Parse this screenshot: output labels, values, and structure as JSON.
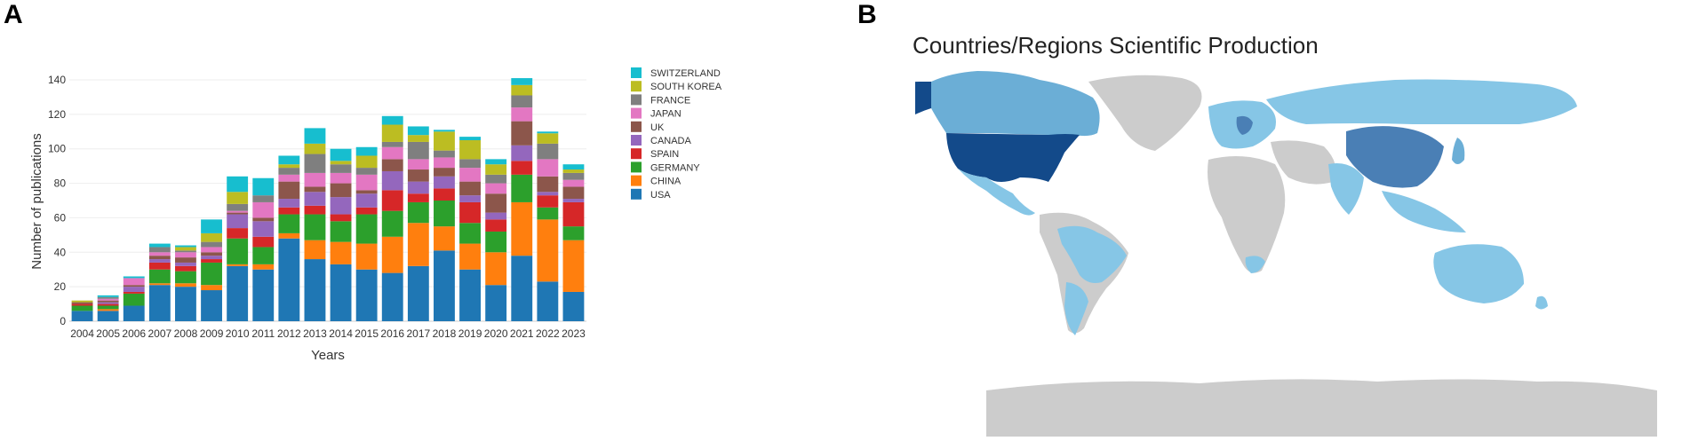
{
  "panel_a": {
    "letter": "A"
  },
  "panel_b": {
    "letter": "B",
    "title": "Countries/Regions Scientific Production"
  },
  "colors": {
    "USA": "#1f77b4",
    "CHINA": "#ff7f0e",
    "GERMANY": "#2ca02c",
    "SPAIN": "#d62728",
    "CANADA": "#9467bd",
    "UK": "#8c564b",
    "JAPAN": "#e377c2",
    "FRANCE": "#7f7f7f",
    "SOUTH KOREA": "#bcbd22",
    "SWITZERLAND": "#17becf",
    "map_none": "#cccccc",
    "map_low": "#86c6e6",
    "map_mid": "#6baed6",
    "map_high": "#4a7fb5",
    "map_top": "#134a8a"
  },
  "chart_data": {
    "type": "bar",
    "stacked": true,
    "title": "",
    "xlabel": "Years",
    "ylabel": "Number of publications",
    "ylim": [
      0,
      140
    ],
    "yticks": [
      0,
      20,
      40,
      60,
      80,
      100,
      120,
      140
    ],
    "legend_position": "right",
    "categories": [
      "2004",
      "2005",
      "2006",
      "2007",
      "2008",
      "2009",
      "2010",
      "2011",
      "2012",
      "2013",
      "2014",
      "2015",
      "2016",
      "2017",
      "2018",
      "2019",
      "2020",
      "2021",
      "2022",
      "2023"
    ],
    "series": [
      {
        "name": "USA",
        "values": [
          6,
          6,
          9,
          21,
          20,
          18,
          32,
          30,
          48,
          36,
          33,
          30,
          28,
          32,
          41,
          30,
          21,
          38,
          23,
          17
        ]
      },
      {
        "name": "CHINA",
        "values": [
          0,
          1,
          0,
          1,
          2,
          3,
          1,
          3,
          3,
          11,
          13,
          15,
          21,
          25,
          14,
          15,
          19,
          31,
          36,
          30
        ]
      },
      {
        "name": "GERMANY",
        "values": [
          3,
          2,
          7,
          8,
          7,
          13,
          15,
          10,
          11,
          15,
          12,
          17,
          15,
          12,
          15,
          12,
          12,
          16,
          7,
          8
        ]
      },
      {
        "name": "SPAIN",
        "values": [
          1,
          1,
          1,
          4,
          3,
          2,
          6,
          6,
          4,
          5,
          4,
          4,
          12,
          5,
          7,
          12,
          7,
          8,
          7,
          14
        ]
      },
      {
        "name": "CANADA",
        "values": [
          0,
          1,
          3,
          2,
          2,
          2,
          8,
          9,
          5,
          8,
          10,
          8,
          11,
          7,
          7,
          4,
          4,
          9,
          2,
          2
        ]
      },
      {
        "name": "UK",
        "values": [
          1,
          1,
          1,
          2,
          3,
          2,
          1,
          2,
          10,
          3,
          8,
          2,
          7,
          7,
          5,
          8,
          11,
          14,
          9,
          7
        ]
      },
      {
        "name": "JAPAN",
        "values": [
          0,
          1,
          4,
          2,
          3,
          3,
          1,
          9,
          4,
          8,
          6,
          9,
          7,
          6,
          6,
          8,
          6,
          8,
          10,
          4
        ]
      },
      {
        "name": "FRANCE",
        "values": [
          0,
          1,
          0,
          3,
          1,
          3,
          4,
          4,
          4,
          11,
          5,
          4,
          3,
          10,
          4,
          5,
          5,
          7,
          9,
          4
        ]
      },
      {
        "name": "SOUTH KOREA",
        "values": [
          1,
          0,
          0,
          0,
          2,
          5,
          7,
          0,
          2,
          6,
          2,
          7,
          10,
          4,
          11,
          11,
          6,
          6,
          6,
          2
        ]
      },
      {
        "name": "SWITZERLAND",
        "values": [
          0,
          1,
          1,
          2,
          1,
          8,
          9,
          10,
          5,
          9,
          7,
          5,
          5,
          5,
          1,
          2,
          3,
          4,
          1,
          3
        ]
      }
    ]
  }
}
